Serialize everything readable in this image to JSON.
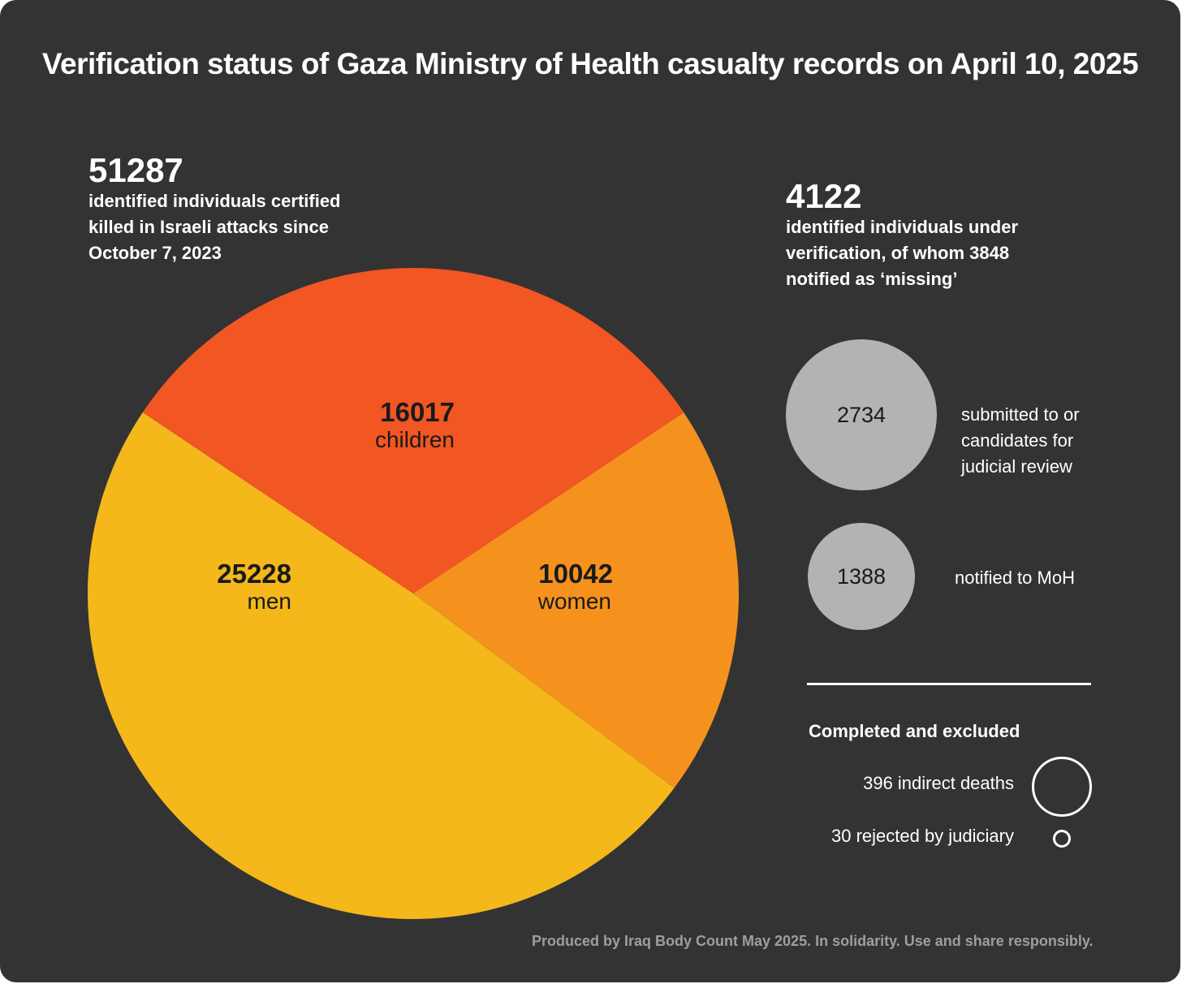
{
  "title": "Verification status of Gaza Ministry of Health casualty records on April 10, 2025",
  "total": {
    "value": "51287",
    "description": "identified individuals certified killed in Israeli attacks since October 7, 2023"
  },
  "verification": {
    "value": "4122",
    "description": "identified individuals under verification,  of whom  3848 notified as ‘missing’",
    "groups": [
      {
        "value": "2734",
        "label": "submitted to or candidates for judicial review"
      },
      {
        "value": "1388",
        "label": "notified to MoH"
      }
    ]
  },
  "excluded": {
    "heading": "Completed and excluded",
    "items": [
      {
        "value": 396,
        "label": "396 indirect deaths"
      },
      {
        "value": 30,
        "label": "30 rejected by judiciary"
      }
    ]
  },
  "footer": "Produced by Iraq Body Count May 2025. In solidarity. Use and share responsibly.",
  "chart_data": {
    "type": "pie",
    "title": "Verification status of Gaza Ministry of Health casualty records on April 10, 2025",
    "total": 51287,
    "slices": [
      {
        "label": "children",
        "value": 16017,
        "display": "16017",
        "color": "#f15623"
      },
      {
        "label": "women",
        "value": 10042,
        "display": "10042",
        "color": "#f5921e"
      },
      {
        "label": "men",
        "value": 25228,
        "display": "25228",
        "color": "#f4b81b"
      }
    ]
  }
}
